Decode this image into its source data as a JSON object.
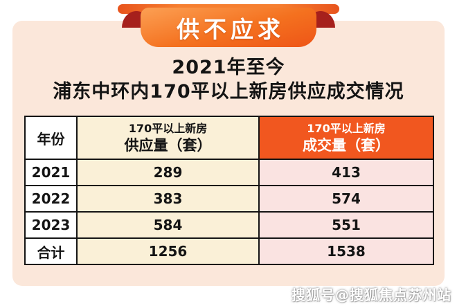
{
  "banner": {
    "label": "供不应求"
  },
  "title": {
    "line1": "2021年至今",
    "line2": "浦东中环内170平以上新房供应成交情况"
  },
  "table": {
    "header": {
      "year": "年份",
      "supply_line1": "170平以上新房",
      "supply_line2": "供应量（套）",
      "deal_line1": "170平以上新房",
      "deal_line2": "成交量（套）"
    },
    "rows": [
      {
        "year": "2021",
        "supply": "289",
        "deal": "413"
      },
      {
        "year": "2022",
        "supply": "383",
        "deal": "574"
      },
      {
        "year": "2023",
        "supply": "584",
        "deal": "551"
      },
      {
        "year": "合计",
        "supply": "1256",
        "deal": "1538"
      }
    ]
  },
  "watermark": {
    "text": "搜狐号@搜狐焦点苏州站"
  },
  "colors": {
    "ribbon_orange": "#f4711f",
    "ribbon_fold_red": "#a6201c",
    "card_background": "#fbe7da",
    "cell_cream": "#faf0d7",
    "cell_pink": "#fae3e1",
    "header_orange": "#f1571f",
    "border_black": "#141414"
  },
  "chart_data": {
    "type": "table",
    "title": "2021年至今 浦东中环内170平以上新房供应成交情况",
    "columns": [
      "年份",
      "170平以上新房供应量（套）",
      "170平以上新房成交量（套）"
    ],
    "rows": [
      [
        "2021",
        289,
        413
      ],
      [
        "2022",
        383,
        574
      ],
      [
        "2023",
        584,
        551
      ],
      [
        "合计",
        1256,
        1538
      ]
    ],
    "annotations": [
      "供不应求"
    ]
  }
}
